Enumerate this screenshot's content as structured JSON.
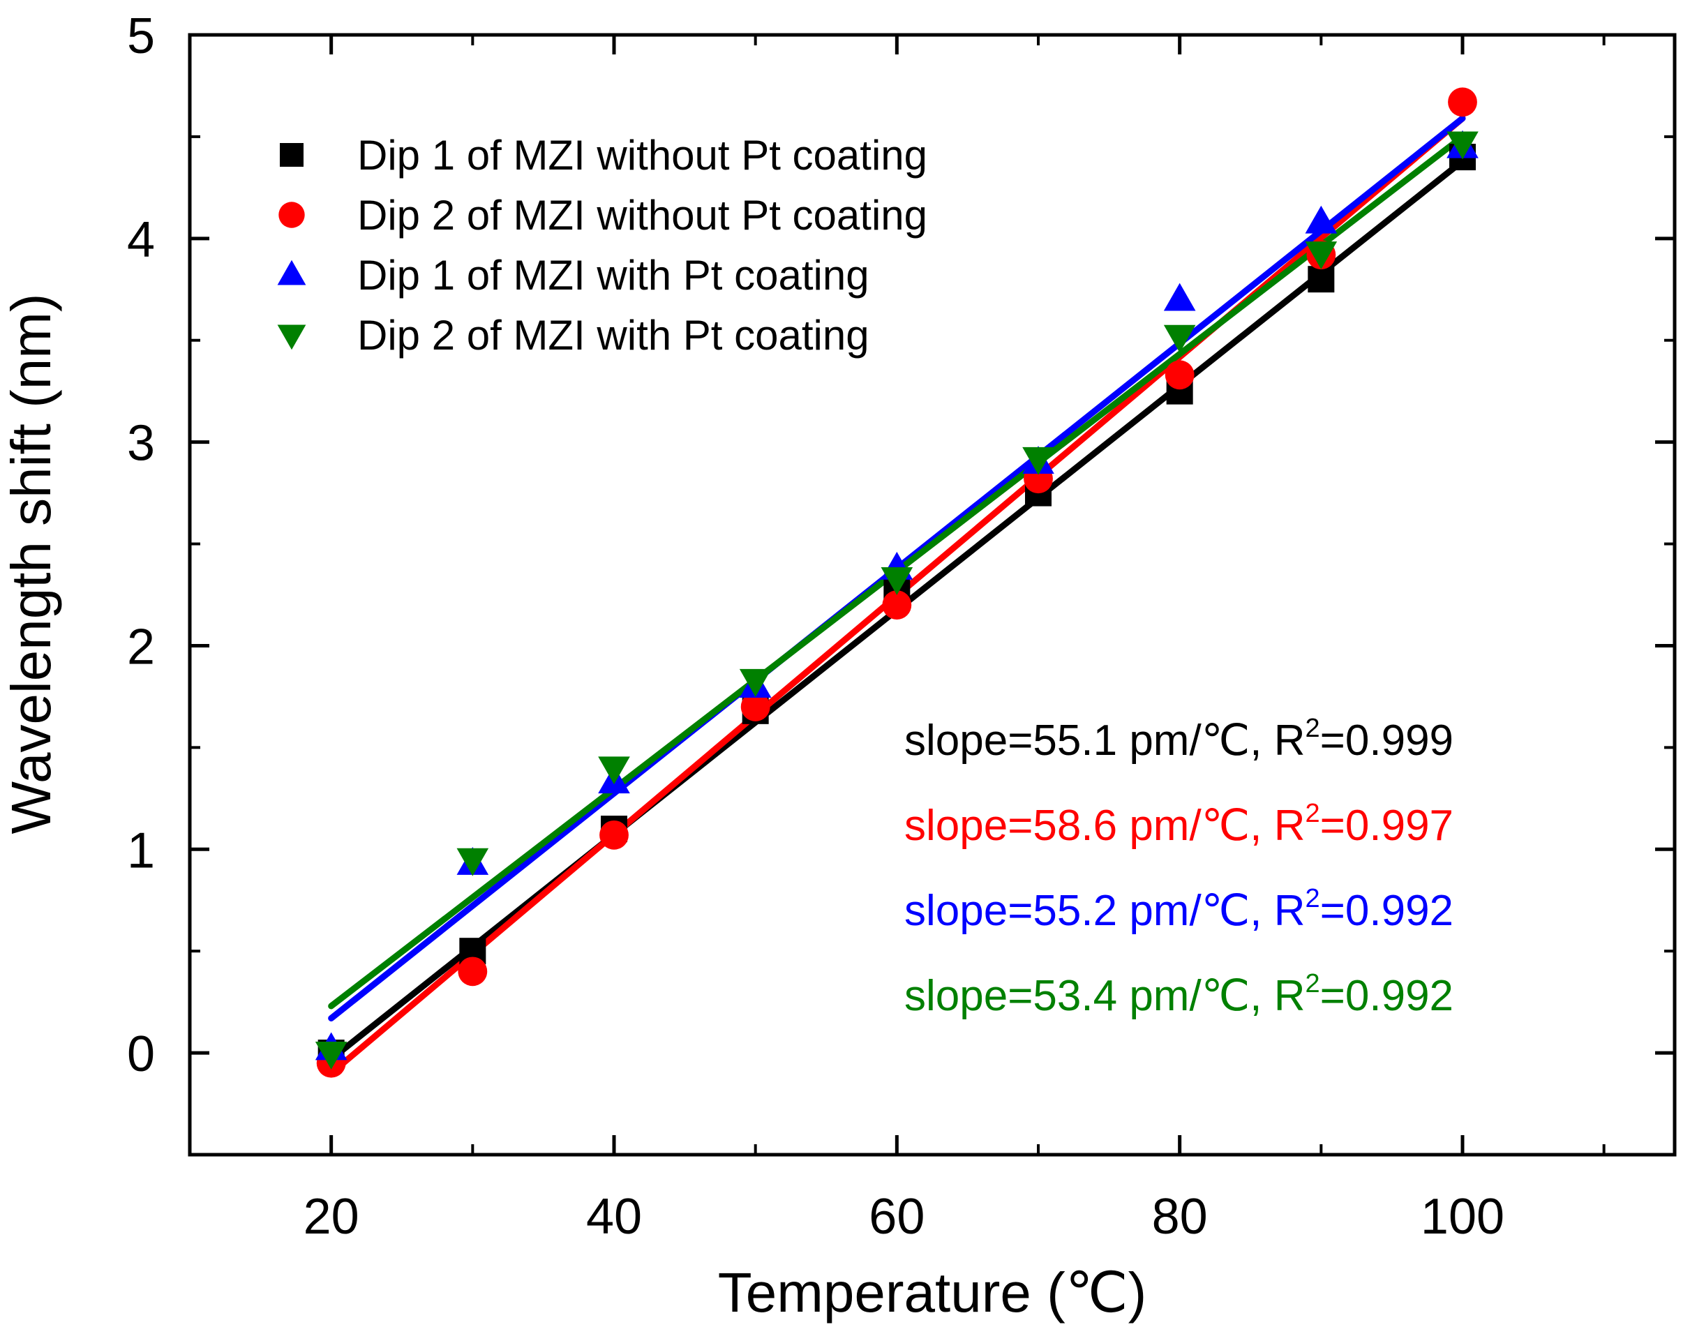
{
  "chart_data": {
    "type": "scatter",
    "title": "",
    "xlabel": "Temperature (℃)",
    "ylabel": "Wavelength shift (nm)",
    "xlim": [
      10,
      115
    ],
    "ylim": [
      -0.5,
      5
    ],
    "xticks": [
      20,
      40,
      60,
      80,
      100
    ],
    "xtick_labels": [
      "20",
      "40",
      "60",
      "80",
      "100"
    ],
    "yticks": [
      0,
      1,
      2,
      3,
      4,
      5
    ],
    "ytick_labels": [
      "0",
      "1",
      "2",
      "3",
      "4",
      "5"
    ],
    "x_minor_ticks": [
      10,
      30,
      50,
      70,
      90,
      110
    ],
    "y_minor_ticks": [
      -0.5,
      0.5,
      1.5,
      2.5,
      3.5,
      4.5
    ],
    "grid": false,
    "legend_position": "top-left",
    "x": [
      20,
      30,
      40,
      50,
      60,
      70,
      80,
      90,
      100
    ],
    "series": [
      {
        "name": "Dip 1 of MZI without Pt coating",
        "marker": "square",
        "color": "#000000",
        "values": [
          0.0,
          0.5,
          1.1,
          1.68,
          2.27,
          2.75,
          3.25,
          3.8,
          4.4
        ],
        "fit": {
          "x": [
            20,
            100
          ],
          "y": [
            -0.03,
            4.38
          ]
        },
        "annotation": {
          "slope_text": "slope=55.1 pm/℃, R",
          "sup": "2",
          "r2_text": "=0.999"
        }
      },
      {
        "name": "Dip 2 of MZI without Pt coating",
        "marker": "circle",
        "color": "#ff0000",
        "values": [
          -0.05,
          0.4,
          1.07,
          1.7,
          2.2,
          2.82,
          3.33,
          3.92,
          4.67
        ],
        "fit": {
          "x": [
            20,
            100
          ],
          "y": [
            -0.1,
            4.59
          ]
        },
        "annotation": {
          "slope_text": "slope=58.6 pm/℃, R",
          "sup": "2",
          "r2_text": "=0.997"
        }
      },
      {
        "name": "Dip 1 of MZI with Pt coating",
        "marker": "triangle-up",
        "color": "#0000ff",
        "values": [
          0.02,
          0.93,
          1.33,
          1.8,
          2.38,
          2.9,
          3.7,
          4.08,
          4.45
        ],
        "fit": {
          "x": [
            20,
            100
          ],
          "y": [
            0.17,
            4.59
          ]
        },
        "annotation": {
          "slope_text": "slope=55.2 pm/℃, R",
          "sup": "2",
          "r2_text": "=0.992"
        }
      },
      {
        "name": "Dip 2 of MZI with Pt coating",
        "marker": "triangle-down",
        "color": "#008000",
        "values": [
          0.0,
          0.95,
          1.4,
          1.83,
          2.33,
          2.92,
          3.52,
          3.93,
          4.47
        ],
        "fit": {
          "x": [
            20,
            100
          ],
          "y": [
            0.23,
            4.5
          ]
        },
        "annotation": {
          "slope_text": "slope=53.4 pm/℃, R",
          "sup": "2",
          "r2_text": "=0.992"
        }
      }
    ]
  }
}
